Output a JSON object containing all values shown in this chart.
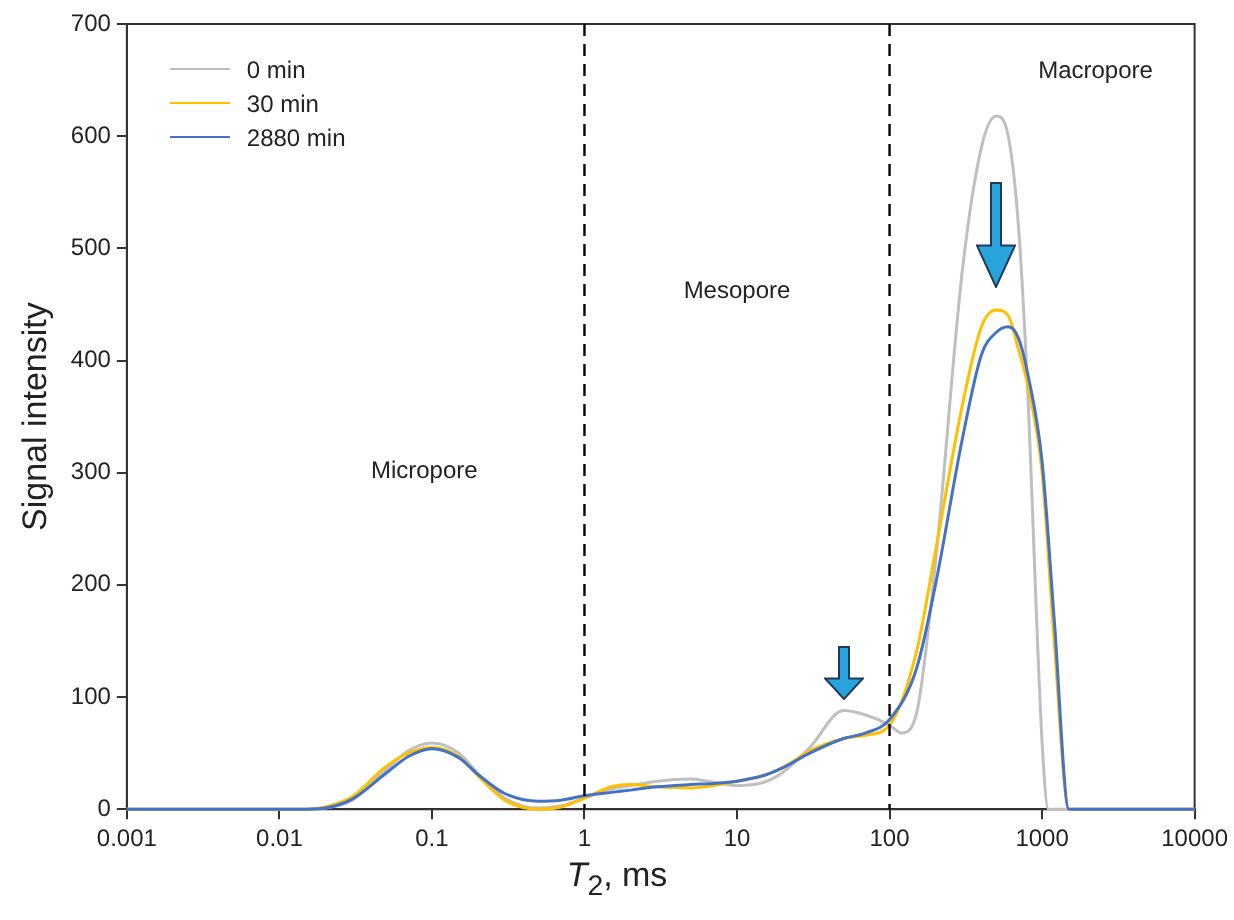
{
  "chart_data": {
    "type": "line",
    "xlabel": "T$_{2}$, ms",
    "ylabel": "Signal intensity",
    "log": "x",
    "xlim": [
      0.001,
      10000
    ],
    "xticks": [
      0.001,
      0.01,
      0.1,
      1,
      10,
      100,
      1000,
      10000
    ],
    "ylim": [
      0,
      700
    ],
    "yticks": [
      0,
      100,
      200,
      300,
      400,
      500,
      600,
      700
    ],
    "grid": false,
    "legend": "top left",
    "marker": "none",
    "line_style": "solid",
    "series": [
      {
        "name": "0 min",
        "color": "#bfbfbf",
        "x": [
          0.001,
          0.01,
          0.015,
          0.02,
          0.03,
          0.05,
          0.07,
          0.1,
          0.15,
          0.2,
          0.3,
          0.5,
          0.7,
          1,
          1.5,
          2,
          3,
          5,
          7,
          10,
          15,
          20,
          30,
          50,
          70,
          100,
          120,
          150,
          200,
          300,
          400,
          500,
          600,
          700,
          800,
          1000,
          1100,
          1500,
          10000
        ],
        "values": [
          0,
          0,
          0,
          1,
          8,
          35,
          52,
          59,
          50,
          32,
          10,
          1,
          3,
          10,
          18,
          21,
          25,
          27,
          24,
          21,
          24,
          33,
          55,
          88,
          84,
          75,
          68,
          85,
          220,
          480,
          590,
          618,
          600,
          520,
          380,
          60,
          0,
          0,
          0
        ]
      },
      {
        "name": "30 min",
        "color": "#ffc000",
        "x": [
          0.001,
          0.01,
          0.015,
          0.02,
          0.03,
          0.05,
          0.07,
          0.1,
          0.15,
          0.2,
          0.3,
          0.5,
          0.7,
          1,
          1.5,
          2,
          3,
          5,
          7,
          10,
          15,
          20,
          30,
          50,
          70,
          100,
          150,
          200,
          300,
          400,
          500,
          600,
          700,
          800,
          1000,
          1200,
          1500,
          10000
        ],
        "values": [
          0,
          0,
          0,
          2,
          11,
          38,
          50,
          55,
          47,
          30,
          8,
          0,
          2,
          10,
          20,
          22,
          20,
          19,
          21,
          25,
          30,
          37,
          52,
          63,
          66,
          75,
          140,
          230,
          360,
          430,
          445,
          440,
          410,
          380,
          300,
          150,
          0,
          0
        ]
      },
      {
        "name": "2880 min",
        "color": "#4472c4",
        "x": [
          0.001,
          0.01,
          0.015,
          0.02,
          0.03,
          0.05,
          0.07,
          0.1,
          0.15,
          0.2,
          0.3,
          0.5,
          0.7,
          1,
          1.5,
          2,
          3,
          5,
          7,
          10,
          15,
          20,
          30,
          50,
          70,
          100,
          150,
          200,
          300,
          400,
          500,
          600,
          700,
          800,
          1000,
          1200,
          1500,
          10000
        ],
        "values": [
          0,
          0,
          0,
          1,
          9,
          32,
          47,
          54,
          46,
          31,
          14,
          7,
          8,
          12,
          15,
          17,
          20,
          22,
          23,
          25,
          30,
          37,
          50,
          63,
          68,
          80,
          125,
          200,
          330,
          405,
          425,
          430,
          420,
          390,
          310,
          170,
          0,
          0
        ]
      }
    ],
    "ref_lines": [
      {
        "axis": "x",
        "value": 1,
        "line_style": "dashed",
        "color": "#000000"
      },
      {
        "axis": "x",
        "value": 100,
        "line_style": "dashed",
        "color": "#000000"
      }
    ],
    "annotations": [
      "Micropore",
      "Mesopore",
      "Macropore"
    ]
  }
}
